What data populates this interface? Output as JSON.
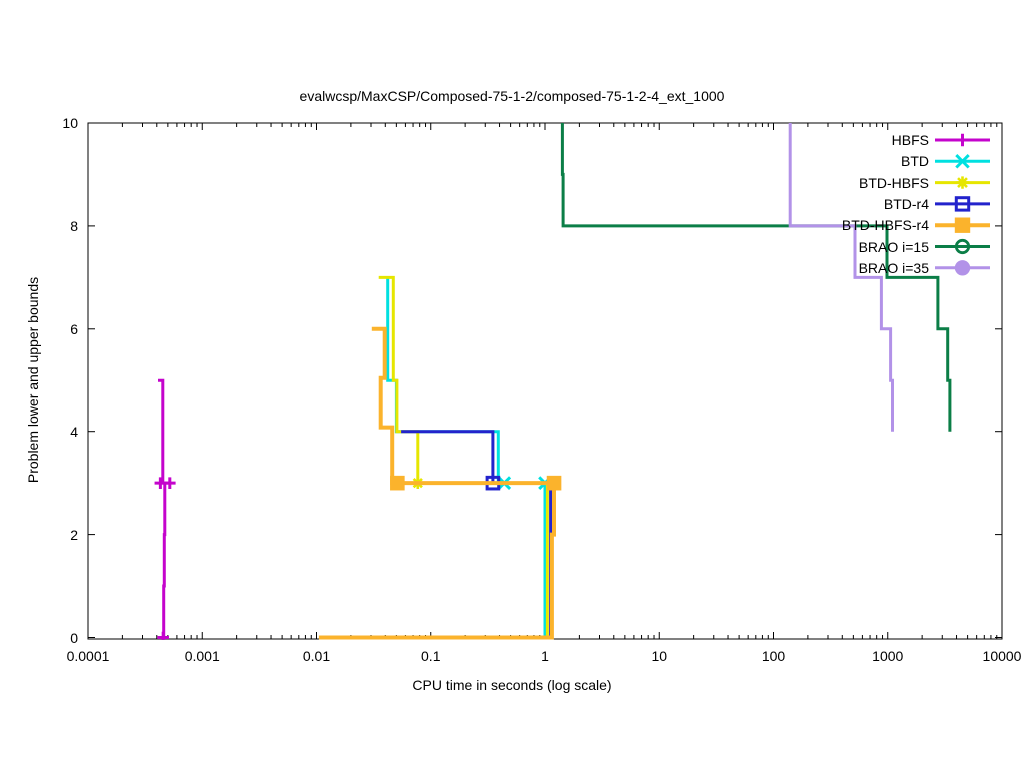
{
  "title": "evalwcsp/MaxCSP/Composed-75-1-2/composed-75-1-2-4_ext_1000",
  "axes": {
    "x_label": "CPU time in seconds (log scale)",
    "y_label": "Problem lower and upper bounds",
    "x_ticks": [
      "0.0001",
      "0.001",
      "0.01",
      "0.1",
      "1",
      "10",
      "100",
      "1000",
      "10000"
    ],
    "y_ticks": [
      "0",
      "2",
      "4",
      "6",
      "8",
      "10"
    ]
  },
  "legend": {
    "entries": [
      {
        "label": "HBFS",
        "color": "#c404cc",
        "marker": "plus"
      },
      {
        "label": "BTD",
        "color": "#00e0e0",
        "marker": "cross"
      },
      {
        "label": "BTD-HBFS",
        "color": "#e6e600",
        "marker": "asterisk"
      },
      {
        "label": "BTD-r4",
        "color": "#2323cc",
        "marker": "square-open"
      },
      {
        "label": "BTD-HBFS-r4",
        "color": "#fbb32c",
        "marker": "square-fill"
      },
      {
        "label": "BRAO i=15",
        "color": "#0b7e47",
        "marker": "circle-open"
      },
      {
        "label": "BRAO i=35",
        "color": "#b292e8",
        "marker": "circle-fill"
      }
    ]
  },
  "chart_data": {
    "type": "line",
    "title": "evalwcsp/MaxCSP/Composed-75-1-2/composed-75-1-2-4_ext_1000",
    "xlabel": "CPU time in seconds (log scale)",
    "ylabel": "Problem lower and upper bounds",
    "x_scale": "log",
    "xlim": [
      0.0001,
      10000
    ],
    "ylim": [
      0,
      10
    ],
    "grid": false,
    "legend_position": "top-right-inside",
    "series": [
      {
        "name": "HBFS",
        "color": "#c404cc",
        "marker": "plus",
        "line_width": 3,
        "segments": [
          [
            [
              0.00041,
              5
            ],
            [
              0.000452,
              5
            ],
            [
              0.000452,
              3
            ]
          ],
          [
            [
              0.000435,
              0
            ],
            [
              0.00046,
              0
            ],
            [
              0.00046,
              1
            ],
            [
              0.000465,
              1
            ],
            [
              0.000465,
              2
            ],
            [
              0.00047,
              2
            ],
            [
              0.00047,
              3
            ]
          ],
          [
            [
              0.00043,
              3
            ],
            [
              0.00052,
              3
            ]
          ]
        ],
        "marker_points": [
          [
            0.00043,
            3
          ],
          [
            0.00052,
            3
          ],
          [
            0.000455,
            0
          ]
        ]
      },
      {
        "name": "BTD",
        "color": "#00e0e0",
        "marker": "cross",
        "line_width": 3,
        "segments": [
          [
            [
              0.042,
              7
            ],
            [
              0.042,
              5
            ],
            [
              0.05,
              5
            ],
            [
              0.05,
              4
            ],
            [
              0.39,
              4
            ],
            [
              0.39,
              3
            ],
            [
              1.0,
              3
            ],
            [
              1.0,
              0
            ]
          ]
        ],
        "marker_points": [
          [
            0.44,
            3
          ],
          [
            1.0,
            3
          ]
        ]
      },
      {
        "name": "BTD-HBFS",
        "color": "#e6e600",
        "marker": "asterisk",
        "line_width": 3,
        "segments": [
          [
            [
              0.035,
              7
            ],
            [
              0.047,
              7
            ],
            [
              0.047,
              5
            ],
            [
              0.0505,
              5
            ],
            [
              0.0505,
              4
            ],
            [
              0.077,
              4
            ],
            [
              0.077,
              3
            ],
            [
              1.05,
              3
            ],
            [
              1.05,
              0
            ]
          ]
        ],
        "marker_points": [
          [
            0.077,
            3
          ]
        ]
      },
      {
        "name": "BTD-r4",
        "color": "#2323cc",
        "marker": "square-open",
        "line_width": 3,
        "segments": [
          [
            [
              0.055,
              4
            ],
            [
              0.35,
              4
            ],
            [
              0.35,
              3
            ],
            [
              1.12,
              3
            ],
            [
              1.12,
              0
            ]
          ]
        ],
        "marker_points": [
          [
            0.35,
            3
          ]
        ]
      },
      {
        "name": "BTD-HBFS-r4",
        "color": "#fbb32c",
        "marker": "square-fill",
        "line_width": 4,
        "segments": [
          [
            [
              0.0305,
              6
            ],
            [
              0.0395,
              6
            ],
            [
              0.0395,
              5.05
            ],
            [
              0.0365,
              5.05
            ],
            [
              0.0365,
              4.08
            ],
            [
              0.046,
              4.08
            ],
            [
              0.046,
              3
            ],
            [
              1.2,
              3
            ]
          ],
          [
            [
              0.0105,
              0
            ],
            [
              1.15,
              0
            ],
            [
              1.15,
              2
            ],
            [
              1.2,
              2
            ],
            [
              1.2,
              3
            ]
          ]
        ],
        "marker_points": [
          [
            0.051,
            3
          ],
          [
            1.2,
            3
          ]
        ]
      },
      {
        "name": "BRAO i=15",
        "color": "#0b7e47",
        "marker": "circle-open",
        "line_width": 3,
        "segments": [
          [
            [
              1.42,
              10.4
            ],
            [
              1.42,
              9
            ],
            [
              1.44,
              9
            ],
            [
              1.44,
              8
            ],
            [
              985,
              8
            ],
            [
              985,
              7
            ],
            [
              2750,
              7
            ],
            [
              2750,
              6
            ],
            [
              3350,
              6
            ],
            [
              3350,
              5
            ],
            [
              3500,
              5
            ],
            [
              3500,
              4
            ]
          ]
        ],
        "marker_points": []
      },
      {
        "name": "BRAO i=35",
        "color": "#b292e8",
        "marker": "circle-fill",
        "line_width": 3,
        "segments": [
          [
            [
              140,
              10.4
            ],
            [
              140,
              8
            ],
            [
              517,
              8
            ],
            [
              517,
              7
            ],
            [
              880,
              7
            ],
            [
              880,
              6
            ],
            [
              1060,
              6
            ],
            [
              1060,
              5
            ],
            [
              1100,
              5
            ],
            [
              1100,
              4
            ]
          ]
        ],
        "marker_points": []
      }
    ]
  }
}
